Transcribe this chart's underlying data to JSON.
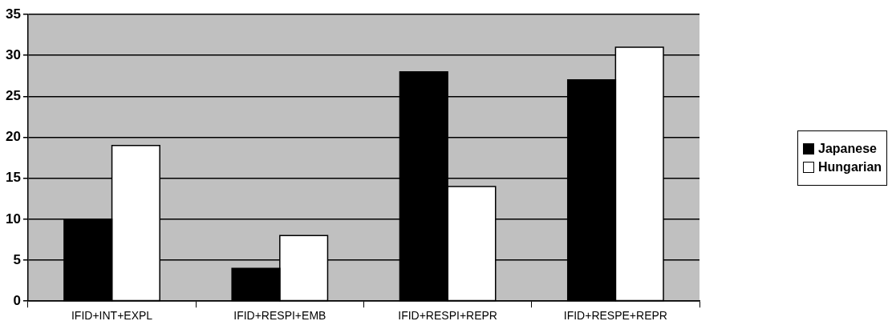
{
  "chart_data": {
    "type": "bar",
    "categories": [
      "IFID+INT+EXPL",
      "IFID+RESPI+EMB",
      "IFID+RESPI+REPR",
      "IFID+RESPE+REPR"
    ],
    "series": [
      {
        "name": "Japanese",
        "color": "#000000",
        "values": [
          10,
          4,
          28,
          27
        ]
      },
      {
        "name": "Hungarian",
        "color": "#ffffff",
        "values": [
          19,
          8,
          14,
          31
        ]
      }
    ],
    "ylim": [
      0,
      35
    ],
    "yticks": [
      0,
      5,
      10,
      15,
      20,
      25,
      30,
      35
    ],
    "grid": "y",
    "legend": "right"
  }
}
